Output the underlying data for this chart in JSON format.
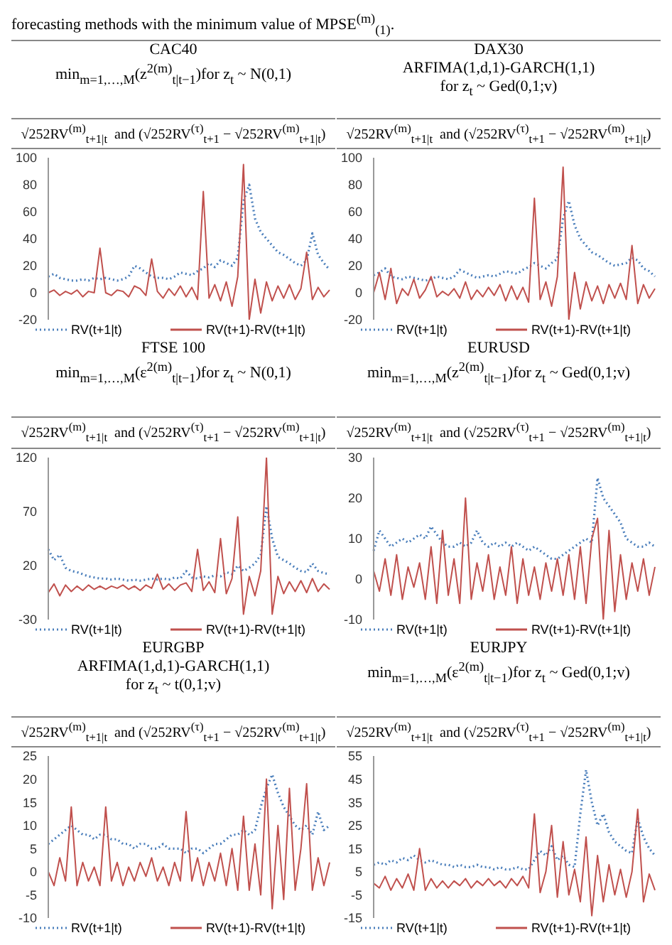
{
  "chart_data": [
    {
      "type": "line",
      "title": "CAC40",
      "subtitle": "min$_{m=1,…,M}$(z$^{2(m)}$$_{t|t−1}$)for z$_{t}$ ~ N(0,1)",
      "annotations": [
        "forecasting methods with the minimum value of MPSE$^{(m)}$$_{(1)}$.",
        "√252RV$^{(m)}$$_{t+1|t}$  and (√252RV$^{(τ)}$$_{t+1}$ − √252RV$^{(m)}$$_{t+1|t}$)"
      ],
      "categories": [
        null,
        null,
        null,
        null,
        null,
        null,
        null,
        null,
        null,
        null,
        null,
        null,
        null,
        null,
        null,
        null,
        null,
        null,
        null,
        null,
        null,
        null,
        null,
        null,
        null,
        null,
        null,
        null,
        null,
        null,
        null,
        null,
        null,
        null,
        null,
        null,
        null,
        null,
        null,
        null,
        null,
        null,
        null,
        null,
        null,
        null,
        null,
        null,
        null,
        null
      ],
      "ylim": [
        -20,
        100
      ],
      "yticks": [
        -20,
        0,
        20,
        40,
        60,
        80,
        100
      ],
      "grid": false,
      "legend": "bottom",
      "tick_labels": "y",
      "marker": "none",
      "series": [
        {
          "name": "RV(t+1|t)",
          "color": "#4a7ebb",
          "line_style": "dotted",
          "values": [
            12,
            14,
            11,
            10,
            9,
            9,
            10,
            9,
            11,
            10,
            11,
            10,
            9,
            10,
            12,
            20,
            18,
            15,
            12,
            11,
            11,
            10,
            12,
            15,
            14,
            13,
            16,
            18,
            22,
            19,
            24,
            22,
            20,
            26,
            68,
            80,
            55,
            45,
            40,
            35,
            30,
            28,
            25,
            22,
            20,
            24,
            44,
            28,
            22,
            17
          ]
        },
        {
          "name": "RV(t+1)-RV(t+1|t)",
          "color": "#c0504d",
          "line_style": "solid",
          "values": [
            0,
            2,
            -2,
            1,
            -1,
            2,
            -3,
            1,
            0,
            33,
            0,
            -2,
            2,
            1,
            -3,
            5,
            3,
            -2,
            25,
            1,
            -4,
            3,
            -2,
            5,
            -3,
            4,
            -5,
            75,
            -4,
            6,
            -6,
            8,
            -10,
            12,
            95,
            -20,
            10,
            -15,
            8,
            -6,
            5,
            -4,
            6,
            -5,
            3,
            30,
            -5,
            4,
            -3,
            2
          ]
        }
      ]
    },
    {
      "type": "line",
      "title": "DAX30",
      "subtitle": "ARFIMA(1,d,1)-GARCH(1,1)\nfor z$_{t}$ ~ Ged(0,1;v)",
      "annotations": [
        "√252RV$^{(m)}$$_{t+1|t}$  and (√252RV$^{(τ)}$$_{t+1}$ − √252RV$^{(m)}$$_{t+1|t}$)"
      ],
      "categories": [
        null,
        null,
        null,
        null,
        null,
        null,
        null,
        null,
        null,
        null,
        null,
        null,
        null,
        null,
        null,
        null,
        null,
        null,
        null,
        null,
        null,
        null,
        null,
        null,
        null,
        null,
        null,
        null,
        null,
        null,
        null,
        null,
        null,
        null,
        null,
        null,
        null,
        null,
        null,
        null,
        null,
        null,
        null,
        null,
        null,
        null,
        null,
        null,
        null,
        null
      ],
      "ylim": [
        -20,
        100
      ],
      "yticks": [
        -20,
        0,
        20,
        40,
        60,
        80,
        100
      ],
      "grid": false,
      "legend": "bottom",
      "tick_labels": "y",
      "marker": "none",
      "series": [
        {
          "name": "RV(t+1|t)",
          "color": "#4a7ebb",
          "line_style": "dotted",
          "values": [
            13,
            15,
            18,
            12,
            11,
            10,
            12,
            11,
            10,
            9,
            10,
            12,
            11,
            10,
            12,
            17,
            15,
            13,
            11,
            12,
            13,
            12,
            14,
            16,
            15,
            14,
            17,
            19,
            22,
            20,
            18,
            22,
            25,
            55,
            68,
            50,
            40,
            35,
            30,
            28,
            25,
            22,
            20,
            21,
            22,
            26,
            24,
            18,
            16,
            12
          ]
        },
        {
          "name": "RV(t+1)-RV(t+1|t)",
          "color": "#c0504d",
          "line_style": "solid",
          "values": [
            0,
            15,
            -5,
            18,
            -8,
            3,
            -2,
            10,
            -4,
            2,
            12,
            -3,
            1,
            -2,
            3,
            -4,
            8,
            -5,
            2,
            -3,
            4,
            -2,
            6,
            -6,
            5,
            -5,
            4,
            -7,
            70,
            -5,
            8,
            -10,
            12,
            93,
            -20,
            15,
            -12,
            8,
            -6,
            5,
            -8,
            6,
            -4,
            7,
            -5,
            35,
            -8,
            6,
            -4,
            3
          ]
        }
      ]
    },
    {
      "type": "line",
      "title": "FTSE 100",
      "subtitle": "min$_{m=1,…,M}$(ε$^{2(m)}$$_{t|t−1}$)for z$_{t}$ ~ N(0,1)",
      "annotations": [
        "√252RV$^{(m)}$$_{t+1|t}$  and (√252RV$^{(τ)}$$_{t+1}$ − √252RV$^{(m)}$$_{t+1|t}$)"
      ],
      "categories": [
        null,
        null,
        null,
        null,
        null,
        null,
        null,
        null,
        null,
        null,
        null,
        null,
        null,
        null,
        null,
        null,
        null,
        null,
        null,
        null,
        null,
        null,
        null,
        null,
        null,
        null,
        null,
        null,
        null,
        null,
        null,
        null,
        null,
        null,
        null,
        null,
        null,
        null,
        null,
        null,
        null,
        null,
        null,
        null,
        null,
        null,
        null,
        null,
        null,
        null
      ],
      "ylim": [
        -30,
        120
      ],
      "yticks": [
        -30,
        20,
        70,
        120
      ],
      "grid": false,
      "legend": "bottom",
      "tick_labels": "y",
      "marker": "none",
      "series": [
        {
          "name": "RV(t+1|t)",
          "color": "#4a7ebb",
          "line_style": "dotted",
          "values": [
            35,
            25,
            30,
            18,
            15,
            14,
            12,
            10,
            9,
            8,
            8,
            7,
            8,
            7,
            6,
            7,
            6,
            7,
            8,
            7,
            8,
            7,
            9,
            8,
            15,
            9,
            8,
            10,
            9,
            11,
            10,
            14,
            12,
            20,
            15,
            18,
            22,
            30,
            75,
            45,
            28,
            25,
            22,
            18,
            15,
            14,
            22,
            15,
            13,
            12
          ]
        },
        {
          "name": "RV(t+1)-RV(t+1|t)",
          "color": "#c0504d",
          "line_style": "solid",
          "values": [
            -5,
            3,
            -8,
            2,
            -4,
            1,
            -3,
            2,
            -2,
            1,
            -2,
            1,
            -1,
            2,
            -2,
            1,
            -3,
            2,
            -1,
            12,
            -2,
            3,
            -3,
            2,
            4,
            -4,
            35,
            -3,
            5,
            -5,
            45,
            -6,
            8,
            65,
            -25,
            10,
            -8,
            15,
            120,
            -25,
            10,
            -6,
            5,
            -4,
            6,
            -5,
            8,
            -4,
            3,
            -2
          ]
        }
      ]
    },
    {
      "type": "line",
      "title": "EURUSD",
      "subtitle": "min$_{m=1,…,M}$(z$^{2(m)}$$_{t|t−1}$)for z$_{t}$ ~ Ged(0,1;v)",
      "annotations": [
        "√252RV$^{(m)}$$_{t+1|t}$  and (√252RV$^{(τ)}$$_{t+1}$ − √252RV$^{(m)}$$_{t+1|t}$)"
      ],
      "categories": [
        null,
        null,
        null,
        null,
        null,
        null,
        null,
        null,
        null,
        null,
        null,
        null,
        null,
        null,
        null,
        null,
        null,
        null,
        null,
        null,
        null,
        null,
        null,
        null,
        null,
        null,
        null,
        null,
        null,
        null,
        null,
        null,
        null,
        null,
        null,
        null,
        null,
        null,
        null,
        null,
        null,
        null,
        null,
        null,
        null,
        null,
        null,
        null,
        null,
        null
      ],
      "ylim": [
        -10,
        30
      ],
      "yticks": [
        -10,
        0,
        10,
        20,
        30
      ],
      "grid": false,
      "legend": "bottom",
      "tick_labels": "y",
      "marker": "none",
      "series": [
        {
          "name": "RV(t+1|t)",
          "color": "#4a7ebb",
          "line_style": "dotted",
          "values": [
            7,
            12,
            10,
            8,
            9,
            10,
            9,
            10,
            11,
            10,
            13,
            11,
            9,
            8,
            8,
            9,
            8,
            9,
            12,
            9,
            8,
            9,
            8,
            9,
            8,
            9,
            8,
            7,
            8,
            7,
            6,
            5,
            5,
            6,
            7,
            8,
            9,
            10,
            9,
            25,
            20,
            18,
            16,
            14,
            10,
            9,
            8,
            8,
            9,
            8
          ]
        },
        {
          "name": "RV(t+1)-RV(t+1|t)",
          "color": "#c0504d",
          "line_style": "solid",
          "values": [
            2,
            -3,
            5,
            -4,
            6,
            -5,
            3,
            -2,
            4,
            -5,
            8,
            -6,
            12,
            -4,
            5,
            -6,
            20,
            -5,
            4,
            -3,
            6,
            -5,
            3,
            -4,
            8,
            -6,
            5,
            -4,
            3,
            -5,
            4,
            -3,
            5,
            -4,
            6,
            -5,
            8,
            -6,
            10,
            15,
            -10,
            12,
            -8,
            6,
            -5,
            4,
            -3,
            5,
            -4,
            3
          ]
        }
      ]
    },
    {
      "type": "line",
      "title": "EURGBP",
      "subtitle": "ARFIMA(1,d,1)-GARCH(1,1)\nfor z$_{t}$ ~ t(0,1;v)",
      "annotations": [
        "√252RV$^{(m)}$$_{t+1|t}$  and (√252RV$^{(τ)}$$_{t+1}$ − √252RV$^{(m)}$$_{t+1|t}$)"
      ],
      "categories": [
        null,
        null,
        null,
        null,
        null,
        null,
        null,
        null,
        null,
        null,
        null,
        null,
        null,
        null,
        null,
        null,
        null,
        null,
        null,
        null,
        null,
        null,
        null,
        null,
        null,
        null,
        null,
        null,
        null,
        null,
        null,
        null,
        null,
        null,
        null,
        null,
        null,
        null,
        null,
        null,
        null,
        null,
        null,
        null,
        null,
        null,
        null,
        null,
        null,
        null
      ],
      "ylim": [
        -10,
        25
      ],
      "yticks": [
        -10,
        -5,
        0,
        5,
        10,
        15,
        20,
        25
      ],
      "grid": false,
      "legend": "bottom",
      "tick_labels": "y",
      "marker": "none",
      "series": [
        {
          "name": "RV(t+1|t)",
          "color": "#4a7ebb",
          "line_style": "dotted",
          "values": [
            6,
            7,
            8,
            9,
            10,
            9,
            8,
            8,
            7,
            8,
            8,
            7,
            7,
            6,
            6,
            5,
            6,
            6,
            5,
            5,
            6,
            5,
            5,
            5,
            4,
            5,
            5,
            4,
            5,
            6,
            6,
            7,
            8,
            8,
            9,
            8,
            9,
            14,
            18,
            21,
            17,
            14,
            12,
            10,
            9,
            10,
            8,
            13,
            9,
            10
          ]
        },
        {
          "name": "RV(t+1)-RV(t+1|t)",
          "color": "#c0504d",
          "line_style": "solid",
          "values": [
            0,
            -3,
            3,
            -2,
            14,
            -3,
            2,
            -2,
            1,
            -3,
            14,
            -2,
            2,
            -3,
            1,
            -2,
            2,
            -1,
            3,
            -2,
            1,
            -3,
            2,
            -2,
            13,
            -2,
            3,
            -3,
            2,
            -2,
            4,
            -3,
            5,
            -4,
            12,
            -4,
            6,
            -5,
            20,
            -8,
            10,
            -6,
            18,
            -4,
            5,
            19,
            -4,
            3,
            -3,
            2
          ]
        }
      ]
    },
    {
      "type": "line",
      "title": "EURJPY",
      "subtitle": "min$_{m=1,…,M}$(ε$^{2(m)}$$_{t|t−1}$)for z$_{t}$ ~ Ged(0,1;v)",
      "annotations": [
        "√252RV$^{(m)}$$_{t+1|t}$  and (√252RV$^{(τ)}$$_{t+1}$ − √252RV$^{(m)}$$_{t+1|t}$)"
      ],
      "categories": [
        null,
        null,
        null,
        null,
        null,
        null,
        null,
        null,
        null,
        null,
        null,
        null,
        null,
        null,
        null,
        null,
        null,
        null,
        null,
        null,
        null,
        null,
        null,
        null,
        null,
        null,
        null,
        null,
        null,
        null,
        null,
        null,
        null,
        null,
        null,
        null,
        null,
        null,
        null,
        null,
        null,
        null,
        null,
        null,
        null,
        null,
        null,
        null,
        null,
        null
      ],
      "ylim": [
        -15,
        55
      ],
      "yticks": [
        -15,
        -5,
        5,
        15,
        25,
        35,
        45,
        55
      ],
      "grid": false,
      "legend": "bottom",
      "tick_labels": "y",
      "marker": "none",
      "series": [
        {
          "name": "RV(t+1|t)",
          "color": "#4a7ebb",
          "line_style": "dotted",
          "values": [
            8,
            9,
            8,
            10,
            9,
            11,
            10,
            12,
            10,
            9,
            10,
            9,
            8,
            8,
            7,
            8,
            7,
            7,
            8,
            7,
            7,
            6,
            7,
            6,
            6,
            7,
            6,
            6,
            10,
            14,
            12,
            16,
            10,
            12,
            8,
            7,
            30,
            49,
            35,
            25,
            30,
            22,
            18,
            16,
            14,
            13,
            28,
            20,
            15,
            12
          ]
        },
        {
          "name": "RV(t+1)-RV(t+1|t)",
          "color": "#c0504d",
          "line_style": "solid",
          "values": [
            0,
            -2,
            3,
            -3,
            2,
            -2,
            4,
            -3,
            15,
            -3,
            2,
            -2,
            1,
            -2,
            1,
            -1,
            2,
            -2,
            1,
            -1,
            2,
            -1,
            1,
            -2,
            2,
            -1,
            3,
            -2,
            30,
            -4,
            5,
            25,
            -6,
            18,
            -5,
            6,
            -8,
            20,
            -14,
            12,
            -8,
            8,
            -5,
            6,
            -6,
            5,
            32,
            -8,
            4,
            -3
          ]
        }
      ]
    }
  ]
}
